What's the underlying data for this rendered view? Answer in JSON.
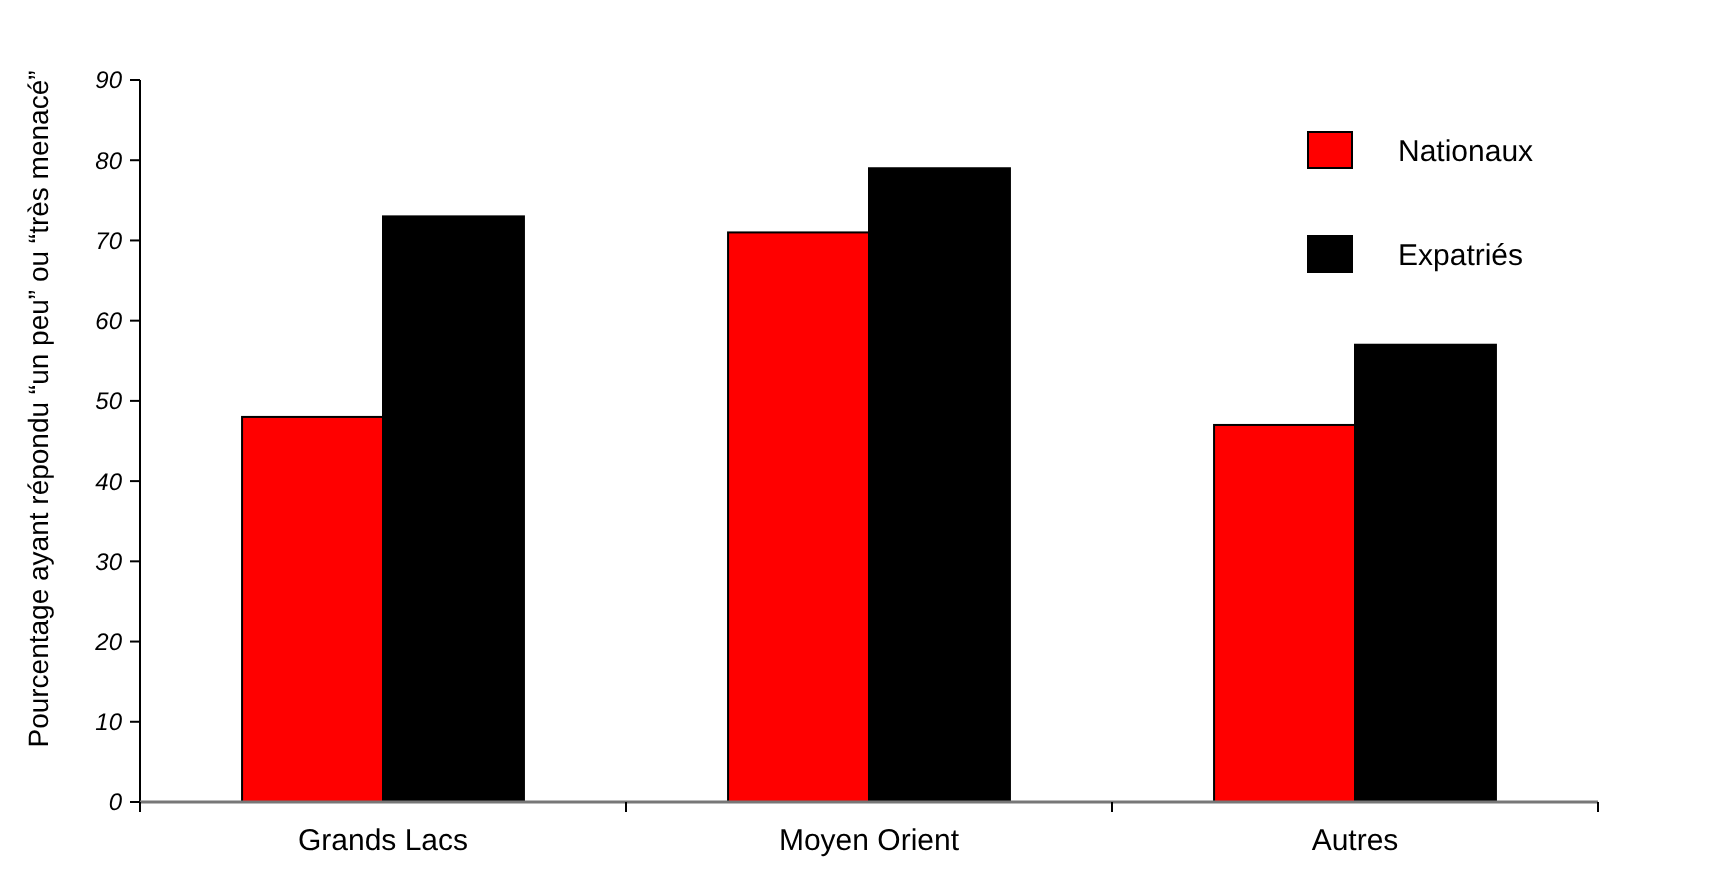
{
  "chart_data": {
    "type": "bar",
    "ylabel": "Pourcentage ayant répondu “un peu” ou “très menacé”",
    "categories": [
      "Grands Lacs",
      "Moyen Orient",
      "Autres"
    ],
    "series": [
      {
        "name": "Nationaux",
        "color": "#ff0000",
        "values": [
          48,
          71,
          47
        ]
      },
      {
        "name": "Expatriés",
        "color": "#000000",
        "values": [
          73,
          79,
          57
        ]
      }
    ],
    "ylim": [
      0,
      90
    ],
    "yticks": [
      0,
      10,
      20,
      30,
      40,
      50,
      60,
      70,
      80,
      90
    ],
    "grid": false,
    "legend": "top right"
  }
}
